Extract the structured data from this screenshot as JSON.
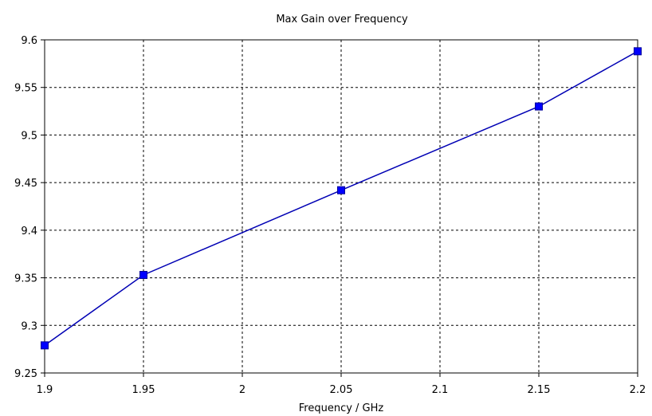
{
  "chart_data": {
    "type": "line",
    "title": "Max Gain over Frequency",
    "xlabel": "Frequency / GHz",
    "ylabel": "",
    "xlim": [
      1.9,
      2.2
    ],
    "ylim": [
      9.25,
      9.6
    ],
    "xticks": [
      "1.9",
      "1.95",
      "2",
      "2.05",
      "2.1",
      "2.15",
      "2.2"
    ],
    "yticks": [
      "9.25",
      "9.3",
      "9.35",
      "9.4",
      "9.45",
      "9.5",
      "9.55",
      "9.6"
    ],
    "grid": true,
    "series": [
      {
        "color": "#0000ff",
        "x": [
          1.9,
          1.95,
          2.05,
          2.15,
          2.2
        ],
        "values": [
          9.279,
          9.353,
          9.442,
          9.53,
          9.588
        ]
      }
    ]
  }
}
